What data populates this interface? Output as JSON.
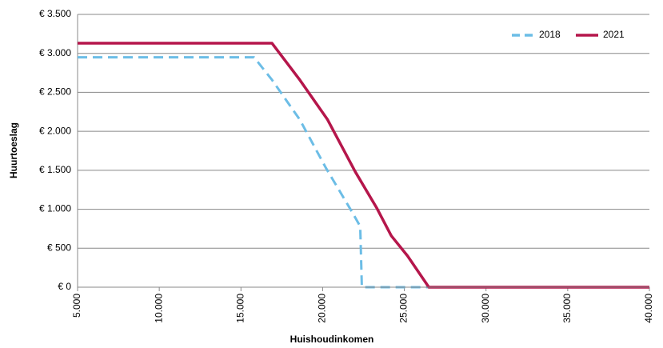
{
  "chart_data": {
    "type": "line",
    "xlabel": "Huishoudinkomen",
    "ylabel": "Huurtoeslag",
    "x": [
      5000,
      15800,
      16900,
      18600,
      20200,
      21800,
      22300,
      22400,
      26500,
      40000
    ],
    "series": [
      {
        "name": "2018",
        "color": "#6cbde6",
        "dash": true,
        "values": [
          2950,
          2950,
          2660,
          2150,
          1530,
          965,
          780,
          0,
          0,
          0
        ]
      },
      {
        "name": "2021",
        "color": "#b5164b",
        "dash": false,
        "x": [
          5000,
          16900,
          18600,
          20300,
          22000,
          23300,
          24200,
          25200,
          26500,
          40000
        ],
        "values": [
          3130,
          3130,
          2660,
          2150,
          1480,
          1020,
          660,
          400,
          0,
          0
        ]
      }
    ],
    "xlim": [
      5000,
      40000
    ],
    "xticks": [
      {
        "value": 5000,
        "label": "5.000"
      },
      {
        "value": 10000,
        "label": "10.000"
      },
      {
        "value": 15000,
        "label": "15.000"
      },
      {
        "value": 20000,
        "label": "20.000"
      },
      {
        "value": 25000,
        "label": "25.000"
      },
      {
        "value": 30000,
        "label": "30.000"
      },
      {
        "value": 35000,
        "label": "35.000"
      },
      {
        "value": 40000,
        "label": "40.000"
      }
    ],
    "ylim": [
      0,
      3500
    ],
    "yticks": [
      {
        "value": 0,
        "label": "€ 0"
      },
      {
        "value": 500,
        "label": "€ 500"
      },
      {
        "value": 1000,
        "label": "€ 1.000"
      },
      {
        "value": 1500,
        "label": "€ 1.500"
      },
      {
        "value": 2000,
        "label": "€ 2.000"
      },
      {
        "value": 2500,
        "label": "€ 2.500"
      },
      {
        "value": 3000,
        "label": "€ 3.000"
      },
      {
        "value": 3500,
        "label": "€ 3.500"
      }
    ],
    "grid": true,
    "legend": "upper right"
  }
}
